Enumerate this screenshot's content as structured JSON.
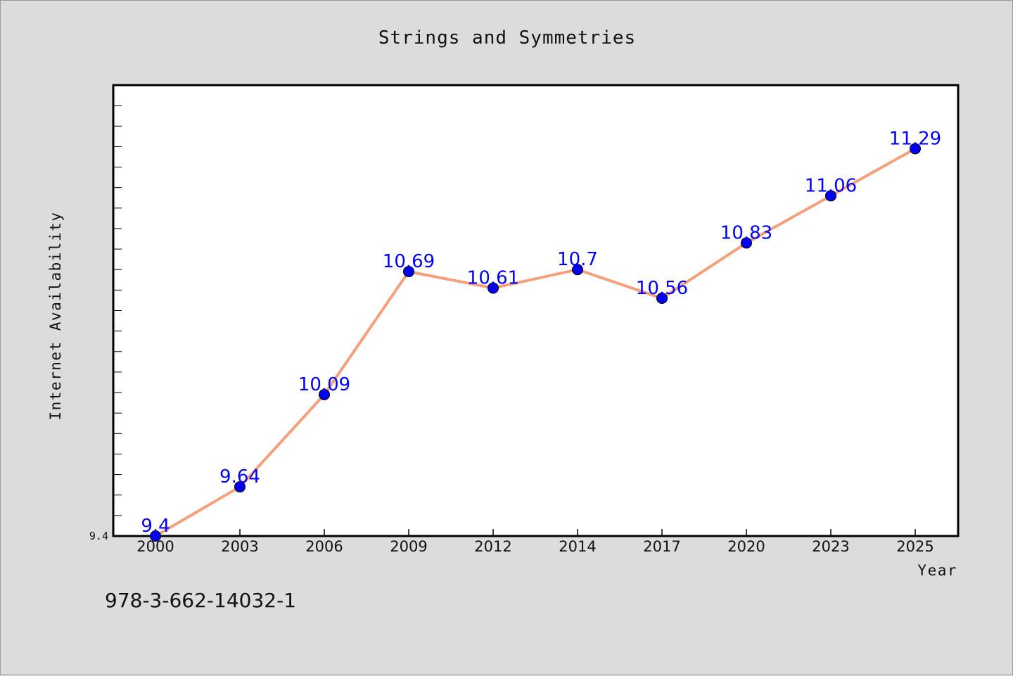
{
  "chart_data": {
    "type": "line",
    "title": "Strings and Symmetries",
    "xlabel": "Year",
    "ylabel": "Internet Availability",
    "categories": [
      "2000",
      "2003",
      "2006",
      "2009",
      "2012",
      "2014",
      "2017",
      "2020",
      "2023",
      "2025"
    ],
    "series": [
      {
        "values": [
          9.4,
          9.64,
          10.09,
          10.69,
          10.61,
          10.7,
          10.56,
          10.83,
          11.06,
          11.29
        ],
        "labels": [
          "9.4",
          "9.64",
          "10.09",
          "10.69",
          "10.61",
          "10.7",
          "10.56",
          "10.83",
          "11.06",
          "11.29"
        ],
        "line_color": "#f4a07a",
        "marker_color": "#0000ee"
      }
    ],
    "yticks": [
      {
        "value": 9.4,
        "label": "9.4"
      }
    ],
    "ylim": [
      9.4,
      11.6
    ],
    "minor_tick_step": 0.1,
    "grid": false,
    "legend": "none"
  },
  "footer": {
    "isbn": "978-3-662-14032-1"
  }
}
